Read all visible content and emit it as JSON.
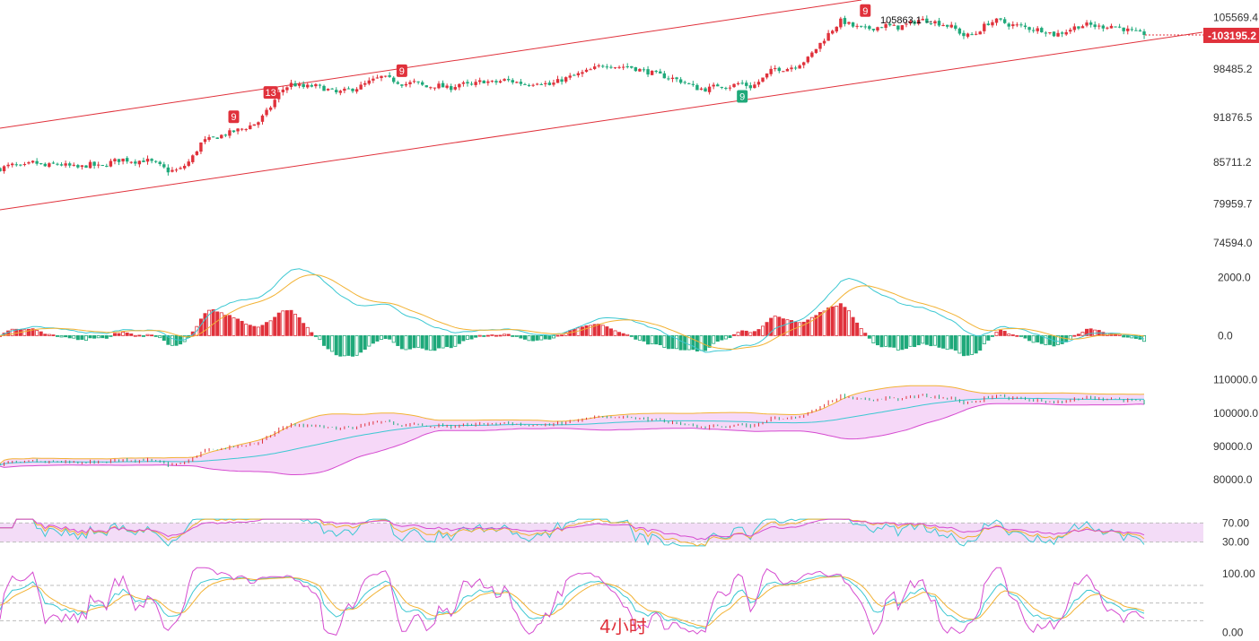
{
  "timeframe_label": "4小时",
  "colors": {
    "up": "#e0313b",
    "down": "#1fa97a",
    "channel": "#e0313b",
    "yellow": "#f2b233",
    "cyan": "#3cc8d2",
    "magenta": "#d54bd0",
    "band_fill": "#f6d8f8",
    "grid": "#bdbdbd"
  },
  "chart_data": [
    {
      "panel": "price",
      "type": "candlestick",
      "y_ticks": [
        "105569.4",
        "98485.2",
        "91876.5",
        "85711.2",
        "79959.7",
        "74594.0"
      ],
      "last_price": "103195.2",
      "high_note": "105863.1",
      "ylim": [
        72000,
        108000
      ],
      "close_path": [
        84800,
        85300,
        85000,
        85700,
        85100,
        85500,
        85200,
        84900,
        85400,
        85000,
        85800,
        86100,
        85800,
        86000,
        85400,
        84500,
        84600,
        86000,
        88500,
        89000,
        89500,
        90000,
        90500,
        91200,
        93000,
        95500,
        96500,
        96000,
        96200,
        95800,
        95200,
        95600,
        96000,
        96800,
        97400,
        97000,
        96400,
        96700,
        96000,
        96300,
        95800,
        96500,
        96200,
        96900,
        96600,
        97000,
        96700,
        96400,
        96800,
        96300,
        97000,
        97500,
        98000,
        98600,
        99200,
        98800,
        98900,
        98400,
        98000,
        97600,
        97200,
        96700,
        95900,
        95700,
        96300,
        96100,
        96600,
        96000,
        97200,
        98600,
        98500,
        99000,
        99900,
        101800,
        103600,
        105200,
        104400,
        104000,
        104200,
        104500,
        104200,
        104700,
        105300,
        105100,
        104700,
        104200,
        103000,
        103400,
        104800,
        105200,
        104600,
        104400,
        104000,
        103900,
        103200,
        103700,
        104400,
        104600,
        104300,
        104500,
        104100,
        103600,
        103195
      ],
      "markers": [
        {
          "label": "9",
          "at": 21,
          "side": "up"
        },
        {
          "label": "13",
          "at": 24,
          "side": "up"
        },
        {
          "label": "9",
          "at": 36,
          "side": "up"
        },
        {
          "label": "9",
          "at": 66,
          "side": "down"
        },
        {
          "label": "9",
          "at": 77,
          "side": "up"
        }
      ]
    },
    {
      "panel": "macd",
      "type": "bar+line",
      "y_ticks": [
        "2000.0",
        "0.0"
      ],
      "ylim": [
        -1100,
        2300
      ]
    },
    {
      "panel": "bands",
      "type": "line+area",
      "y_ticks": [
        "110000.0",
        "100000.0",
        "90000.0",
        "80000.0"
      ],
      "ylim": [
        76000,
        111000
      ]
    },
    {
      "panel": "rsi",
      "type": "line",
      "y_ticks": [
        "70.00",
        "30.00"
      ],
      "ylim": [
        20,
        80
      ]
    },
    {
      "panel": "kdj",
      "type": "line",
      "y_ticks": [
        "100.00",
        "0.00"
      ],
      "ylim": [
        -10,
        115
      ]
    }
  ]
}
